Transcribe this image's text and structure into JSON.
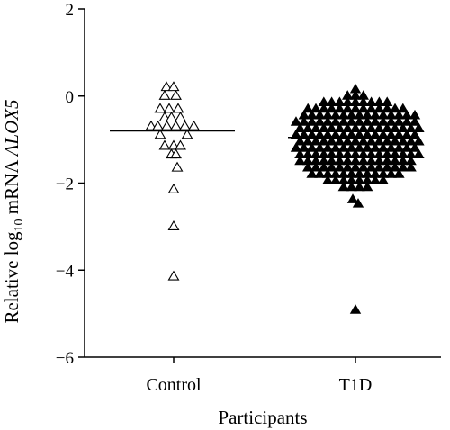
{
  "chart_data": {
    "type": "scatter",
    "xlabel": "Participants",
    "ylabel_prefix": "Relative log",
    "ylabel_sub": "10",
    "ylabel_mid": " mRNA ",
    "ylabel_gene": "ALOX5",
    "ylim": [
      -6,
      2
    ],
    "yticks": [
      2,
      0,
      -2,
      -4,
      -6
    ],
    "ytick_labels": [
      "2",
      "0",
      "−2",
      "−4",
      "−6"
    ],
    "categories": [
      "Control",
      "T1D"
    ],
    "grid": false,
    "legend": "none",
    "series": [
      {
        "category": "Control",
        "marker": "open-triangle",
        "median": -0.8,
        "points": [
          {
            "dx": -0.16,
            "y": 0.2
          },
          {
            "dx": 0.0,
            "y": 0.2
          },
          {
            "dx": -0.2,
            "y": 0.0
          },
          {
            "dx": 0.05,
            "y": 0.0
          },
          {
            "dx": -0.3,
            "y": -0.3
          },
          {
            "dx": -0.1,
            "y": -0.3
          },
          {
            "dx": 0.1,
            "y": -0.3
          },
          {
            "dx": -0.2,
            "y": -0.5
          },
          {
            "dx": -0.05,
            "y": -0.5
          },
          {
            "dx": 0.15,
            "y": -0.5
          },
          {
            "dx": -0.5,
            "y": -0.7
          },
          {
            "dx": -0.35,
            "y": -0.7
          },
          {
            "dx": -0.15,
            "y": -0.7
          },
          {
            "dx": 0.05,
            "y": -0.7
          },
          {
            "dx": 0.25,
            "y": -0.7
          },
          {
            "dx": 0.45,
            "y": -0.7
          },
          {
            "dx": -0.3,
            "y": -0.9
          },
          {
            "dx": 0.3,
            "y": -0.9
          },
          {
            "dx": -0.2,
            "y": -1.15
          },
          {
            "dx": 0.0,
            "y": -1.15
          },
          {
            "dx": 0.15,
            "y": -1.15
          },
          {
            "dx": -0.05,
            "y": -1.35
          },
          {
            "dx": 0.05,
            "y": -1.35
          },
          {
            "dx": 0.08,
            "y": -1.65
          },
          {
            "dx": 0.0,
            "y": -2.15
          },
          {
            "dx": 0.0,
            "y": -3.0
          },
          {
            "dx": 0.0,
            "y": -4.15
          }
        ]
      },
      {
        "category": "T1D",
        "marker": "filled-triangle",
        "median": -0.95,
        "extra_points": [
          {
            "dx": 0.0,
            "y": 0.15
          },
          {
            "dx": -0.06,
            "y": -2.38
          },
          {
            "dx": 0.06,
            "y": -2.48
          },
          {
            "dx": 0.0,
            "y": -4.92
          }
        ]
      }
    ]
  }
}
